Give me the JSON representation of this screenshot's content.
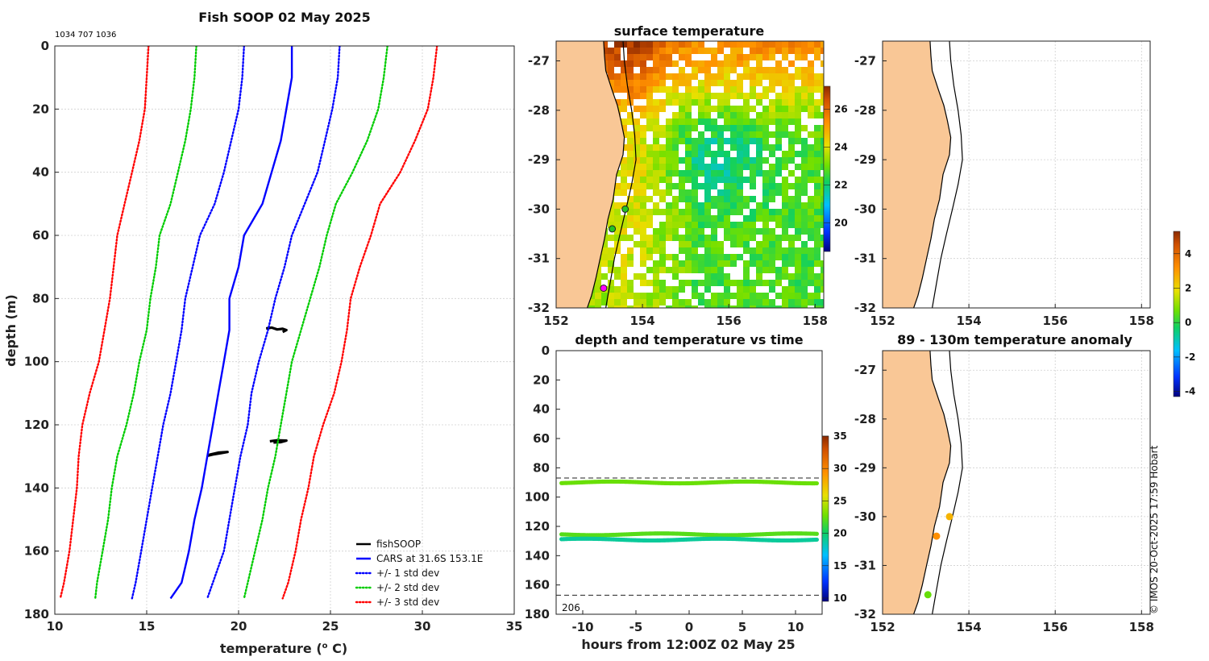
{
  "chart_data": [
    {
      "id": "profile",
      "type": "line",
      "title": "Fish SOOP 02 May 2025",
      "annotation": "1034 707 1036",
      "xlabel": "temperature (",
      "xlabel_sup": "o",
      "xlabel_end": " C)",
      "ylabel": "depth (m)",
      "xlim": [
        10,
        35
      ],
      "ylim": [
        0,
        180
      ],
      "xticks": [
        10,
        15,
        20,
        25,
        30,
        35
      ],
      "yticks": [
        0,
        20,
        40,
        60,
        80,
        100,
        120,
        140,
        160,
        180
      ],
      "depths": [
        0,
        10,
        20,
        30,
        40,
        50,
        60,
        70,
        80,
        90,
        100,
        110,
        120,
        130,
        140,
        150,
        160,
        170,
        175
      ],
      "series": [
        {
          "name": "fishSOOP",
          "color": "#000000",
          "style": "solid",
          "segments": [
            {
              "temp": [
                21.5,
                21.8,
                22.1,
                22.4,
                22.6,
                22.4
              ],
              "depth": [
                89.5,
                89.2,
                89.8,
                89.6,
                90.0,
                90.6
              ]
            },
            {
              "temp": [
                18.4,
                18.9,
                19.4,
                19.0,
                18.6,
                18.3
              ],
              "depth": [
                129.5,
                128.8,
                128.6,
                129.0,
                129.4,
                129.8
              ]
            },
            {
              "temp": [
                21.7,
                22.1,
                22.6,
                22.3,
                21.9
              ],
              "depth": [
                125.2,
                124.9,
                125.0,
                125.5,
                125.6
              ]
            }
          ]
        },
        {
          "name": "CARS at 31.6S 153.1E",
          "color": "#0000ff",
          "style": "solid",
          "values": [
            22.9,
            22.9,
            22.6,
            22.3,
            21.8,
            21.3,
            20.3,
            20.0,
            19.5,
            19.5,
            19.2,
            18.9,
            18.6,
            18.3,
            18.0,
            17.6,
            17.3,
            16.9,
            16.3
          ]
        },
        {
          "name": "+/- 1 std dev",
          "color": "#0000ff",
          "style": "dotted",
          "paired": true,
          "left": [
            20.3,
            20.2,
            20.0,
            19.6,
            19.2,
            18.7,
            17.9,
            17.5,
            17.1,
            16.9,
            16.6,
            16.3,
            15.9,
            15.6,
            15.3,
            15.0,
            14.7,
            14.4,
            14.2
          ],
          "right": [
            25.5,
            25.4,
            25.1,
            24.7,
            24.3,
            23.6,
            22.9,
            22.5,
            22.0,
            21.6,
            21.1,
            20.7,
            20.5,
            20.1,
            19.8,
            19.5,
            19.2,
            18.6,
            18.3
          ]
        },
        {
          "name": "+/- 2 std dev",
          "color": "#00cc00",
          "style": "dotted",
          "paired": true,
          "left": [
            17.7,
            17.6,
            17.4,
            17.1,
            16.7,
            16.3,
            15.7,
            15.5,
            15.2,
            15.0,
            14.6,
            14.3,
            13.9,
            13.4,
            13.1,
            12.9,
            12.6,
            12.3,
            12.2
          ],
          "right": [
            28.1,
            27.9,
            27.6,
            27.0,
            26.2,
            25.3,
            24.8,
            24.4,
            23.9,
            23.4,
            22.9,
            22.6,
            22.3,
            22.0,
            21.6,
            21.3,
            20.9,
            20.5,
            20.3
          ]
        },
        {
          "name": "+/- 3 std dev",
          "color": "#ff0000",
          "style": "dotted",
          "paired": true,
          "left": [
            15.1,
            15.0,
            14.9,
            14.6,
            14.2,
            13.8,
            13.4,
            13.2,
            13.0,
            12.7,
            12.4,
            11.9,
            11.5,
            11.3,
            11.2,
            11.0,
            10.8,
            10.5,
            10.3
          ],
          "right": [
            30.8,
            30.6,
            30.3,
            29.6,
            28.8,
            27.7,
            27.2,
            26.6,
            26.1,
            25.9,
            25.6,
            25.2,
            24.6,
            24.1,
            23.8,
            23.4,
            23.1,
            22.7,
            22.4
          ]
        }
      ],
      "legend": "bottom-right"
    },
    {
      "id": "sst_map",
      "type": "heatmap",
      "title": "surface temperature",
      "xlim": [
        152,
        158.2
      ],
      "ylim": [
        -32,
        -26.6
      ],
      "xticks": [
        152,
        154,
        156,
        158
      ],
      "yticks": [
        -27,
        -28,
        -29,
        -30,
        -31,
        -32
      ],
      "colorbar": {
        "min": 18.5,
        "max": 27.2,
        "ticks": [
          20,
          22,
          24,
          26
        ]
      },
      "points": [
        {
          "lon": 153.6,
          "lat": -30.0,
          "color": "#22c422"
        },
        {
          "lon": 153.3,
          "lat": -30.4,
          "color": "#22c422"
        },
        {
          "lon": 153.1,
          "lat": -31.6,
          "color": "#ff00ff"
        }
      ]
    },
    {
      "id": "depth_time",
      "type": "scatter",
      "title": "depth and temperature vs time",
      "xlabel": "hours from 12:00Z 02 May 25",
      "xlim": [
        -12.5,
        12.5
      ],
      "ylim": [
        0,
        180
      ],
      "xticks": [
        -10,
        -5,
        0,
        5,
        10
      ],
      "yticks": [
        0,
        20,
        40,
        60,
        80,
        100,
        120,
        140,
        160,
        180
      ],
      "dashed_lines": [
        87,
        167
      ],
      "corner_label": "206",
      "colorbar": {
        "min": 9.5,
        "max": 35,
        "ticks": [
          10,
          15,
          20,
          25,
          30,
          35
        ]
      },
      "bands": [
        {
          "depth": 90,
          "temp": 22.6
        },
        {
          "depth": 125.4,
          "temp": 22.1
        },
        {
          "depth": 129.0,
          "temp": 18.9
        }
      ]
    },
    {
      "id": "map_top_right",
      "type": "scatter",
      "title": "",
      "xlim": [
        152,
        158.2
      ],
      "ylim": [
        -32,
        -26.6
      ],
      "xticks": [
        152,
        154,
        156,
        158
      ],
      "yticks": [
        -27,
        -28,
        -29,
        -30,
        -31,
        -32
      ]
    },
    {
      "id": "anomaly_map",
      "type": "scatter",
      "title": "89 - 130m temperature anomaly",
      "xlim": [
        152,
        158.2
      ],
      "ylim": [
        -32,
        -26.6
      ],
      "xticks": [
        152,
        154,
        156,
        158
      ],
      "yticks": [
        -27,
        -28,
        -29,
        -30,
        -31,
        -32
      ],
      "colorbar": {
        "min": -4.3,
        "max": 5.3,
        "ticks": [
          -4,
          -2,
          0,
          2,
          4
        ]
      },
      "points": [
        {
          "lon": 153.55,
          "lat": -30.0,
          "anomaly": 2.6
        },
        {
          "lon": 153.25,
          "lat": -30.4,
          "anomaly": 3.2
        },
        {
          "lon": 153.05,
          "lat": -31.6,
          "anomaly": 0.6
        }
      ]
    }
  ],
  "credit": "© IMOS 20-Oct-2025 17:59 Hobart"
}
